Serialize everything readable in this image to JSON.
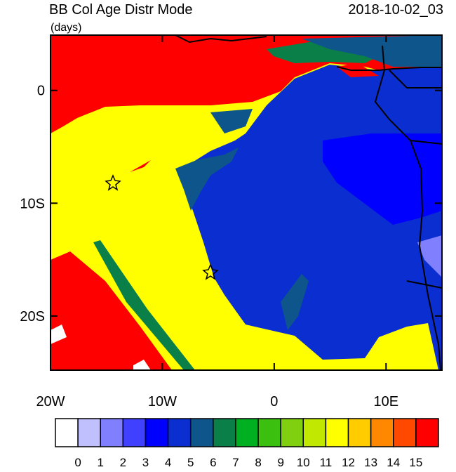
{
  "header": {
    "title": "BB Col Age Distr Mode",
    "units": "(days)",
    "timestamp": "2018-10-02_03"
  },
  "map": {
    "xlim": [
      -20,
      15
    ],
    "ylim": [
      -24.8,
      4.9
    ],
    "xticks": [
      {
        "value": -20,
        "label": "20W"
      },
      {
        "value": -10,
        "label": "10W"
      },
      {
        "value": 0,
        "label": "0"
      },
      {
        "value": 10,
        "label": "10E"
      }
    ],
    "yticks": [
      {
        "value": 0,
        "label": "0"
      },
      {
        "value": -10,
        "label": "10S"
      },
      {
        "value": -20,
        "label": "20S"
      }
    ]
  },
  "colorbar": {
    "levels": [
      0,
      1,
      2,
      3,
      4,
      5,
      6,
      7,
      8,
      9,
      10,
      11,
      12,
      13,
      14,
      15
    ],
    "colors": [
      "#ffffff",
      "#c0c0ff",
      "#8080ff",
      "#4040ff",
      "#0000ff",
      "#0a2ed0",
      "#0e558c",
      "#0a8048",
      "#00b020",
      "#3cc010",
      "#80d010",
      "#c0e800",
      "#ffff00",
      "#ffcc00",
      "#ff8800",
      "#ff4800",
      "#ff0000"
    ]
  }
}
